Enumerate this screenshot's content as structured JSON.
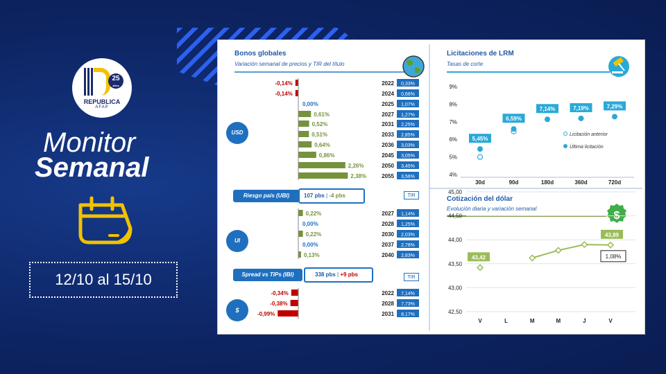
{
  "slide": {
    "logo": {
      "name": "REPUBLICA",
      "sub": "AFAP",
      "years": "25",
      "years_label": "años"
    },
    "title_line1": "Monitor",
    "title_line2": "Semanal",
    "dates": "12/10 al 15/10",
    "colors": {
      "background": "#0f2a6b",
      "accent_blue": "#1f5aa6",
      "yellow": "#f2c200",
      "green": "#76923c",
      "red": "#c00000",
      "cyan": "#29a9d8"
    }
  },
  "bonos": {
    "title": "Bonos globales",
    "subtitle": "Variación semanal de precios y TIR del título",
    "usd_label": "USD",
    "ui_label": "UI",
    "peso_label": "$",
    "riesgo": {
      "label": "Riesgo país (UBI)",
      "value": "107 pbs",
      "change": "-4 pbs"
    },
    "spread": {
      "label": "Spread vs TIPs (IBI)",
      "value": "338 pbs",
      "change": "+9 pbs"
    },
    "tir_label": "TIR",
    "icon": "globe-icon"
  },
  "chart_data": [
    {
      "type": "bar",
      "title": "Bonos globales",
      "subtitle": "Variación semanal de precios y TIR del título",
      "groups": [
        {
          "name": "USD",
          "rows": [
            {
              "year": "2022",
              "var": -0.14,
              "var_label": "-0,14%",
              "tir": "0,33%"
            },
            {
              "year": "2024",
              "var": -0.14,
              "var_label": "-0,14%",
              "tir": "0,66%"
            },
            {
              "year": "2025",
              "var": 0.0,
              "var_label": "0,00%",
              "tir": "1,07%"
            },
            {
              "year": "2027",
              "var": 0.61,
              "var_label": "0,61%",
              "tir": "1,27%"
            },
            {
              "year": "2031",
              "var": 0.52,
              "var_label": "0,52%",
              "tir": "2,25%"
            },
            {
              "year": "2033",
              "var": 0.51,
              "var_label": "0,51%",
              "tir": "2,85%"
            },
            {
              "year": "2036",
              "var": 0.64,
              "var_label": "0,64%",
              "tir": "3,03%"
            },
            {
              "year": "2045",
              "var": 0.86,
              "var_label": "0,86%",
              "tir": "3,05%"
            },
            {
              "year": "2050",
              "var": 2.26,
              "var_label": "2,26%",
              "tir": "3,45%"
            },
            {
              "year": "2055",
              "var": 2.38,
              "var_label": "2,38%",
              "tir": "3,56%"
            }
          ]
        },
        {
          "name": "UI",
          "rows": [
            {
              "year": "2027",
              "var": 0.22,
              "var_label": "0,22%",
              "tir": "1,14%"
            },
            {
              "year": "2028",
              "var": 0.0,
              "var_label": "0,00%",
              "tir": "1,25%"
            },
            {
              "year": "2030",
              "var": 0.22,
              "var_label": "0,22%",
              "tir": "2,03%"
            },
            {
              "year": "2037",
              "var": 0.0,
              "var_label": "0,00%",
              "tir": "2,78%"
            },
            {
              "year": "2040",
              "var": 0.13,
              "var_label": "0,13%",
              "tir": "2,83%"
            }
          ]
        },
        {
          "name": "$",
          "rows": [
            {
              "year": "2022",
              "var": -0.34,
              "var_label": "-0,34%",
              "tir": "7,14%"
            },
            {
              "year": "2028",
              "var": -0.38,
              "var_label": "-0,38%",
              "tir": "7,73%"
            },
            {
              "year": "2031",
              "var": -0.99,
              "var_label": "-0,99%",
              "tir": "8,17%"
            }
          ]
        }
      ]
    },
    {
      "type": "scatter",
      "title": "Licitaciones de LRM",
      "subtitle": "Tasas de corte",
      "categories": [
        "30d",
        "90d",
        "180d",
        "360d",
        "720d"
      ],
      "yticks": [
        "9%",
        "8%",
        "7%",
        "6%",
        "5%",
        "4%"
      ],
      "ylim": [
        4,
        9
      ],
      "series": [
        {
          "name": "Licitación anterior",
          "values": [
            5.0,
            6.45,
            null,
            null,
            null
          ]
        },
        {
          "name": "Última licitación",
          "values": [
            5.45,
            6.59,
            7.14,
            7.19,
            7.29
          ],
          "labels": [
            "5,45%",
            "6,59%",
            "7,14%",
            "7,19%",
            "7,29%"
          ]
        }
      ],
      "icon": "gavel-icon"
    },
    {
      "type": "line",
      "title": "Cotización del dólar",
      "subtitle": "Evolución diaria y variación semanal",
      "categories": [
        "V",
        "L",
        "M",
        "M",
        "J",
        "V"
      ],
      "yticks": [
        "45,00",
        "44,50",
        "44,00",
        "43,50",
        "43,00",
        "42,50"
      ],
      "ylim": [
        42.5,
        45.0
      ],
      "values": [
        43.42,
        null,
        43.62,
        43.78,
        43.9,
        43.89
      ],
      "first_label": "43,42",
      "last_label": "43,89",
      "change_label": "1,08%",
      "icon": "dollar-badge-icon"
    }
  ]
}
